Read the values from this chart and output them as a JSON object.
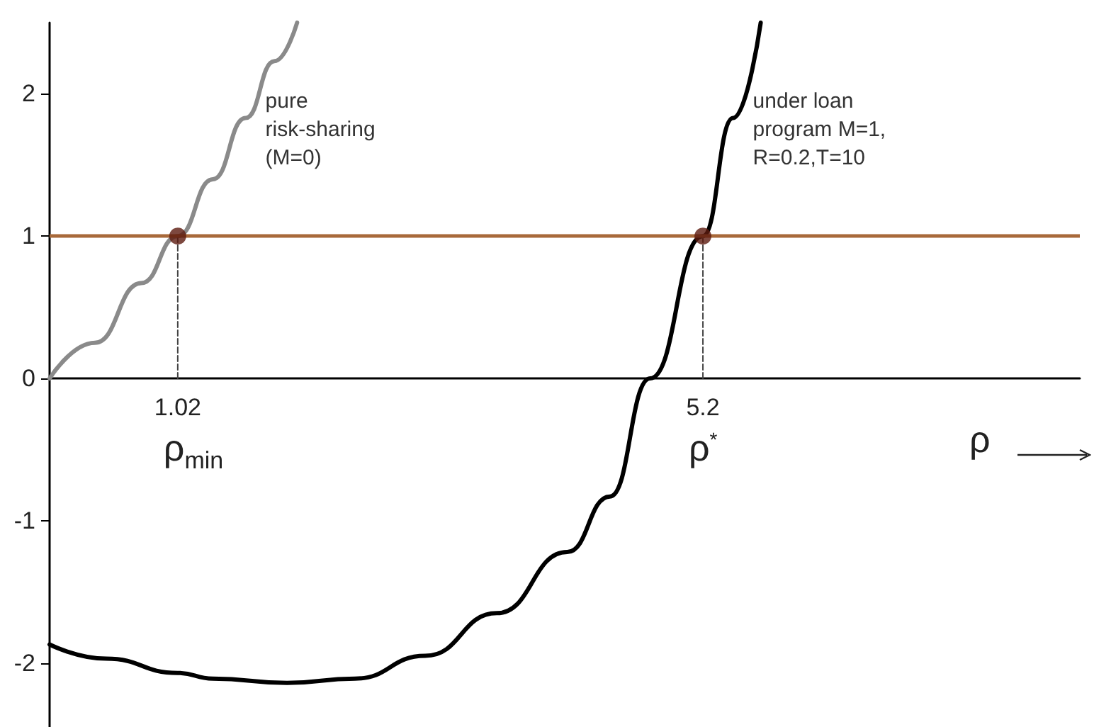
{
  "chart_data": {
    "type": "line",
    "xlabel": "ρ",
    "xlim": [
      0,
      8.2
    ],
    "ylim": [
      -2.45,
      2.5
    ],
    "yticks": [
      -2,
      -1,
      0,
      1,
      2
    ],
    "xticks": [
      {
        "value": 1.02,
        "label": "1.02"
      },
      {
        "value": 5.2,
        "label": "5.2"
      }
    ],
    "grid": false,
    "marker": "none",
    "line_style": "solid",
    "series": [
      {
        "name": "pure risk-sharing (M=0)",
        "color": "#8a8a8a",
        "x": [
          0,
          0.36,
          0.73,
          1.02,
          1.3,
          1.56,
          1.79,
          1.97
        ],
        "values": [
          0,
          0.25,
          0.67,
          1,
          1.4,
          1.83,
          2.23,
          2.5
        ]
      },
      {
        "name": "under loan program M=1, R=0.2,T=10",
        "color": "#000000",
        "x": [
          0,
          0.45,
          1.02,
          1.3,
          1.89,
          2.43,
          2.99,
          3.56,
          4.12,
          4.46,
          4.78,
          5.2,
          5.44,
          5.66
        ],
        "values": [
          -1.87,
          -1.97,
          -2.07,
          -2.11,
          -2.14,
          -2.11,
          -1.95,
          -1.65,
          -1.22,
          -0.83,
          0,
          1,
          1.83,
          2.5
        ]
      },
      {
        "type": "line",
        "line_style": "dashed",
        "color": "#444444",
        "x": [
          1.02,
          1.02
        ],
        "values": [
          0,
          1
        ]
      },
      {
        "type": "line",
        "line_style": "dashed",
        "color": "#444444",
        "x": [
          5.2,
          5.2
        ],
        "values": [
          0,
          1
        ]
      },
      {
        "type": "scatter",
        "marker": "circle",
        "color": "#5c1a0f",
        "x": [
          1.02,
          5.2
        ],
        "values": [
          1,
          1
        ]
      }
    ],
    "ref_lines": [
      {
        "axis": "y",
        "value": 1,
        "color": "#a8693a"
      }
    ],
    "annotations": [
      "ρ$_{min}$",
      "ρ$^{*}$"
    ]
  }
}
